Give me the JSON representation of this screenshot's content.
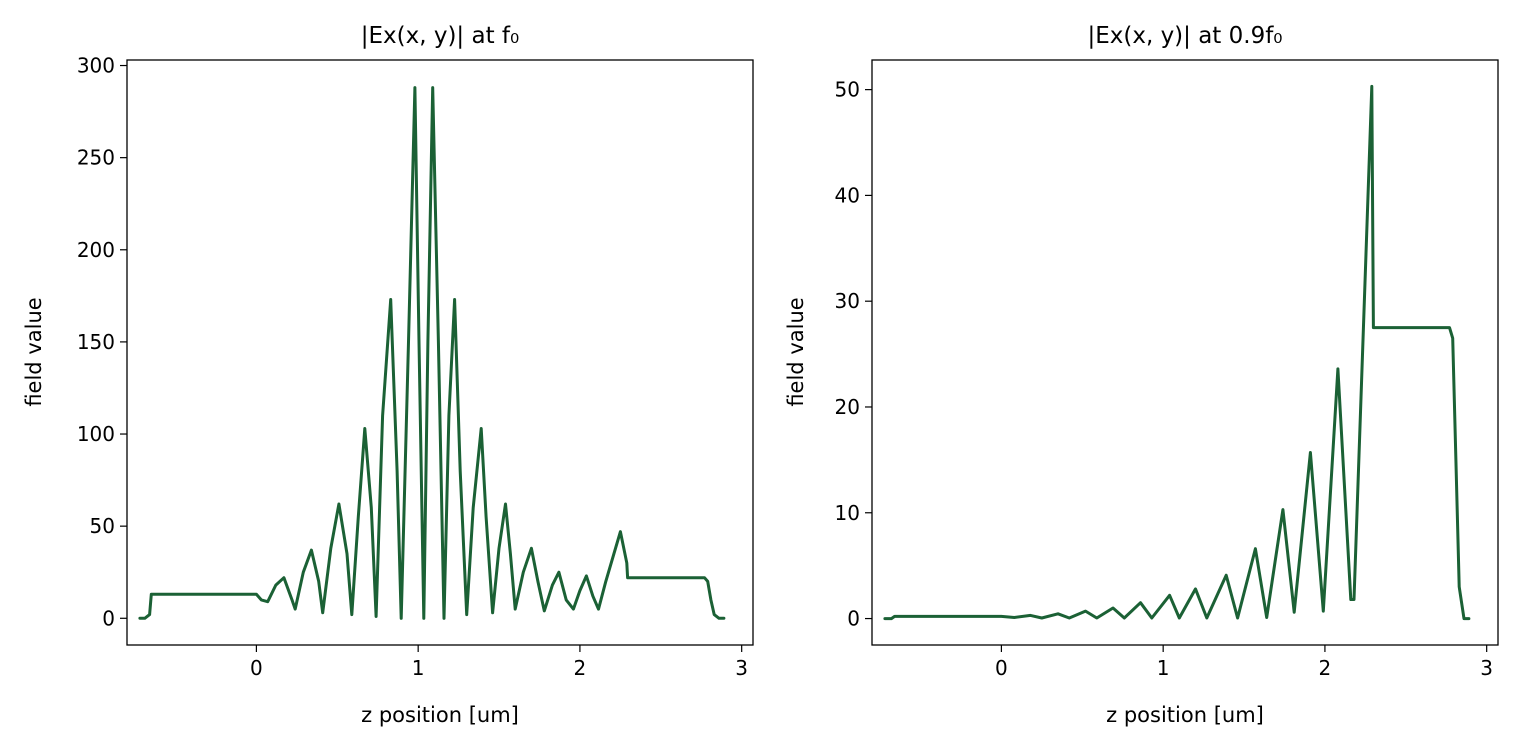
{
  "colors": {
    "series": "#1b6135"
  },
  "chart_data": [
    {
      "type": "line",
      "title": "|Ex(x, y)| at f₀",
      "xlabel": "z position [um]",
      "ylabel": "field value",
      "xlim": [
        -0.8,
        3.07
      ],
      "ylim": [
        -14.5,
        303
      ],
      "xticks": [
        0,
        1,
        2,
        3
      ],
      "yticks": [
        0,
        50,
        100,
        150,
        200,
        250,
        300
      ],
      "grid": false,
      "series": [
        {
          "x": [
            -0.72,
            -0.69,
            -0.66,
            -0.65,
            -0.3,
            0.0,
            0.03,
            0.07,
            0.12,
            0.17,
            0.22,
            0.24,
            0.29,
            0.34,
            0.385,
            0.41,
            0.46,
            0.51,
            0.56,
            0.59,
            0.63,
            0.67,
            0.71,
            0.74,
            0.78,
            0.83,
            0.87,
            0.895,
            0.94,
            0.98,
            1.005,
            1.035,
            1.06,
            1.09,
            1.125,
            1.16,
            1.19,
            1.225,
            1.26,
            1.3,
            1.34,
            1.39,
            1.42,
            1.46,
            1.5,
            1.54,
            1.57,
            1.6,
            1.65,
            1.7,
            1.74,
            1.78,
            1.83,
            1.87,
            1.915,
            1.96,
            2.0,
            2.04,
            2.08,
            2.115,
            2.16,
            2.21,
            2.25,
            2.29,
            2.295,
            2.5,
            2.77,
            2.79,
            2.81,
            2.83,
            2.86,
            2.89
          ],
          "y": [
            0,
            0,
            2,
            13,
            13,
            13,
            10,
            9,
            18,
            22,
            10,
            5,
            25,
            37,
            20,
            3,
            38,
            62,
            35,
            2,
            55,
            103,
            60,
            1,
            110,
            173,
            80,
            0,
            150,
            288,
            150,
            0,
            150,
            288,
            150,
            0,
            110,
            173,
            80,
            2,
            60,
            103,
            55,
            3,
            38,
            62,
            35,
            5,
            25,
            38,
            20,
            4,
            18,
            25,
            10,
            5,
            15,
            23,
            12,
            5,
            20,
            35,
            47,
            30,
            22,
            22,
            22,
            20,
            10,
            2,
            0,
            0
          ]
        }
      ]
    },
    {
      "type": "line",
      "title": "|Ex(x, y)| at 0.9f₀",
      "xlabel": "z position [um]",
      "ylabel": "field value",
      "xlim": [
        -0.8,
        3.07
      ],
      "ylim": [
        -2.5,
        52.8
      ],
      "xticks": [
        0,
        1,
        2,
        3
      ],
      "yticks": [
        0,
        10,
        20,
        30,
        40,
        50
      ],
      "grid": false,
      "series": [
        {
          "x": [
            -0.72,
            -0.68,
            -0.66,
            -0.3,
            0.0,
            0.08,
            0.18,
            0.25,
            0.35,
            0.42,
            0.52,
            0.59,
            0.69,
            0.76,
            0.86,
            0.93,
            1.04,
            1.1,
            1.2,
            1.27,
            1.39,
            1.46,
            1.57,
            1.64,
            1.74,
            1.81,
            1.91,
            1.99,
            2.08,
            2.16,
            2.18,
            2.29,
            2.3,
            2.5,
            2.77,
            2.79,
            2.81,
            2.83,
            2.86,
            2.89
          ],
          "y": [
            0,
            0,
            0.2,
            0.2,
            0.2,
            0.1,
            0.3,
            0.05,
            0.45,
            0.05,
            0.7,
            0.05,
            1.0,
            0.05,
            1.5,
            0.05,
            2.2,
            0.05,
            2.8,
            0.05,
            4.1,
            0.05,
            6.6,
            0.1,
            10.3,
            0.6,
            15.7,
            0.7,
            23.6,
            1.8,
            1.8,
            50.3,
            27.5,
            27.5,
            27.5,
            26.5,
            15,
            3,
            0,
            0
          ]
        }
      ]
    }
  ]
}
